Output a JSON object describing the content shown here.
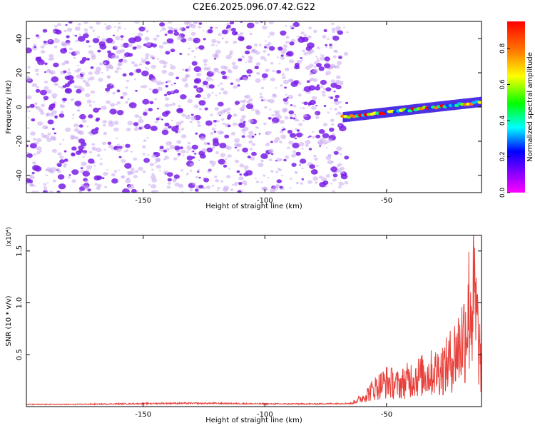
{
  "figure": {
    "title": "C2E6.2025.096.07.42.G22"
  },
  "colors": {
    "background_points": "#8a2be2",
    "snr_line": "#e8403a",
    "axis": "#000000"
  },
  "chart_data": [
    {
      "type": "heatmap",
      "title": "C2E6.2025.096.07.42.G22",
      "xlabel": "Height of straight line (km)",
      "ylabel": "Frequency (Hz)",
      "xlim": [
        -198,
        -11
      ],
      "ylim": [
        -50,
        50
      ],
      "xticks": [
        -150,
        -100,
        -50
      ],
      "yticks": [
        -40,
        -20,
        0,
        20,
        40
      ],
      "colorbar": {
        "label": "Normalized spectral amplitude",
        "range": [
          0.0,
          0.95
        ],
        "ticks": [
          0.0,
          0.2,
          0.4,
          0.6,
          0.8
        ],
        "colormap": "rainbow (magenta-blue-cyan-green-yellow-red)"
      },
      "signal_track": {
        "description_x": [
          -68,
          -11
        ],
        "frequency_start": -6,
        "frequency_end": 3,
        "peak_amplitude": 0.9
      },
      "noise_region_x": [
        -198,
        -66
      ],
      "grid": false
    },
    {
      "type": "line",
      "xlabel": "Height of straight line (km)",
      "ylabel": "SNR (10 * v/v)",
      "scale_label": "(x10⁴)",
      "xlim": [
        -198,
        -11
      ],
      "ylim": [
        0,
        1.65
      ],
      "xticks": [
        -150,
        -100,
        -50
      ],
      "yticks": [
        0.5,
        1.0,
        1.5
      ],
      "ytick_labels": [
        "0.5",
        "1.0",
        "1.5"
      ],
      "series": [
        {
          "x": [
            -198,
            -180,
            -160,
            -140,
            -120,
            -100,
            -80,
            -64,
            -60,
            -55,
            -50,
            -45,
            -40,
            -35,
            -30,
            -25,
            -20,
            -18,
            -16,
            -14,
            -12,
            -11
          ],
          "values": [
            0.02,
            0.02,
            0.025,
            0.03,
            0.03,
            0.025,
            0.025,
            0.03,
            0.1,
            0.25,
            0.35,
            0.3,
            0.4,
            0.45,
            0.5,
            0.6,
            0.9,
            1.1,
            1.5,
            1.6,
            0.9,
            0.5
          ]
        }
      ],
      "grid": false
    }
  ]
}
